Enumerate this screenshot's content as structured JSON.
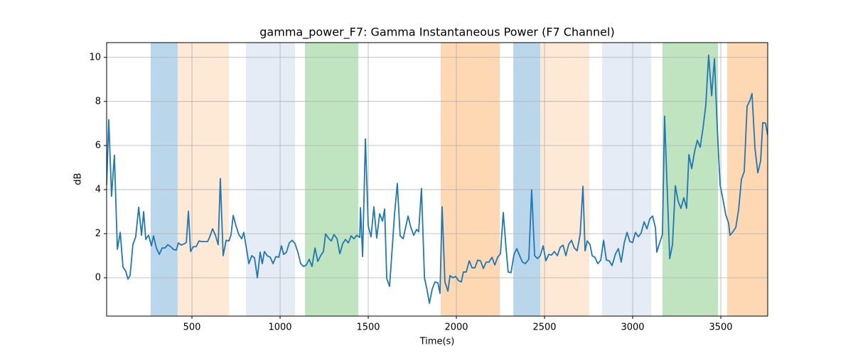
{
  "chart_data": {
    "type": "line",
    "title": "gamma_power_F7: Gamma Instantaneous Power (F7 Channel)",
    "xlabel": "Time(s)",
    "ylabel": "dB",
    "color": "#1f77b4",
    "x": [
      16,
      28,
      44,
      60,
      77,
      93,
      109,
      125,
      137,
      149,
      165,
      181,
      198,
      214,
      226,
      238,
      254,
      270,
      282,
      298,
      315,
      331,
      347,
      363,
      379,
      395,
      411,
      423,
      440,
      456,
      468,
      480,
      492,
      508,
      524,
      540,
      556,
      573,
      589,
      601,
      617,
      633,
      649,
      661,
      677,
      694,
      710,
      722,
      734,
      750,
      766,
      782,
      794,
      806,
      823,
      839,
      855,
      871,
      887,
      899,
      911,
      927,
      944,
      960,
      976,
      992,
      1008,
      1020,
      1036,
      1052,
      1069,
      1085,
      1101,
      1117,
      1133,
      1149,
      1165,
      1181,
      1198,
      1214,
      1230,
      1246,
      1258,
      1274,
      1290,
      1306,
      1323,
      1339,
      1355,
      1371,
      1387,
      1403,
      1419,
      1435,
      1452,
      1456,
      1468,
      1484,
      1500,
      1516,
      1532,
      1548,
      1565,
      1581,
      1593,
      1605,
      1621,
      1637,
      1649,
      1665,
      1681,
      1698,
      1714,
      1726,
      1742,
      1758,
      1774,
      1786,
      1802,
      1819,
      1835,
      1847,
      1863,
      1879,
      1895,
      1907,
      1919,
      1935,
      1952,
      1964,
      1980,
      1996,
      2012,
      2028,
      2040,
      2056,
      2073,
      2089,
      2105,
      2121,
      2137,
      2153,
      2169,
      2185,
      2202,
      2218,
      2234,
      2250,
      2266,
      2282,
      2294,
      2310,
      2327,
      2343,
      2359,
      2375,
      2391,
      2411,
      2427,
      2444,
      2460,
      2476,
      2492,
      2508,
      2524,
      2540,
      2556,
      2573,
      2589,
      2605,
      2621,
      2637,
      2653,
      2669,
      2685,
      2702,
      2718,
      2730,
      2742,
      2758,
      2770,
      2786,
      2802,
      2819,
      2835,
      2851,
      2867,
      2883,
      2903,
      2919,
      2935,
      2952,
      2968,
      2984,
      3000,
      3016,
      3032,
      3048,
      3065,
      3081,
      3097,
      3113,
      3129,
      3137,
      3153,
      3169,
      3181,
      3198,
      3210,
      3226,
      3242,
      3258,
      3274,
      3290,
      3306,
      3319,
      3335,
      3351,
      3367,
      3383,
      3399,
      3415,
      3431,
      3448,
      3464,
      3480,
      3496,
      3512,
      3528,
      3544,
      3552,
      3569,
      3585,
      3601,
      3617,
      3633,
      3649,
      3665,
      3677,
      3694,
      3710,
      3726,
      3738,
      3754,
      3766
    ],
    "values": [
      4.2,
      7.17,
      3.7,
      5.56,
      1.29,
      2.06,
      0.48,
      0.29,
      -0.06,
      0.1,
      1.5,
      1.86,
      3.2,
      1.93,
      3.0,
      1.74,
      1.93,
      1.45,
      1.9,
      1.35,
      1.06,
      1.35,
      1.35,
      1.5,
      1.41,
      1.29,
      1.25,
      1.58,
      1.48,
      1.54,
      1.6,
      3.02,
      1.19,
      1.41,
      1.41,
      1.67,
      1.64,
      1.64,
      1.64,
      1.86,
      2.22,
      1.93,
      1.5,
      4.5,
      1.0,
      1.7,
      1.67,
      1.96,
      2.83,
      2.35,
      1.96,
      1.77,
      2.06,
      1.48,
      0.64,
      1.0,
      0.9,
      0,
      1.16,
      0.64,
      1.19,
      1.0,
      0.93,
      0.64,
      0.96,
      0.93,
      1.45,
      1.06,
      1.16,
      1.58,
      1.7,
      1.54,
      1.16,
      0.64,
      0.51,
      0.58,
      0.84,
      0.51,
      1.35,
      0.74,
      1.0,
      1.19,
      1.99,
      1.8,
      1.67,
      1.96,
      1.77,
      1.09,
      1.54,
      1.74,
      1.58,
      1.9,
      1.77,
      1.93,
      1.83,
      3.18,
      0.96,
      6.3,
      2.35,
      1.86,
      3.22,
      1.8,
      2.9,
      2.57,
      3.12,
      -0.03,
      -0.39,
      1.45,
      2.86,
      4.28,
      1.9,
      1.77,
      2.35,
      2.8,
      2.28,
      1.93,
      2.19,
      2.09,
      4.05,
      0,
      -0.61,
      -1.16,
      -0.51,
      -0.19,
      -0.23,
      -0.71,
      3.22,
      -0.19,
      -0.61,
      0.1,
      0,
      0.06,
      -0.13,
      -0.19,
      0.26,
      0.26,
      0.77,
      0.45,
      0.45,
      0.8,
      0.77,
      0.42,
      0.71,
      0.71,
      0.93,
      0.58,
      0.93,
      1.09,
      2.96,
      1.32,
      0.26,
      0.23,
      1.06,
      1.32,
      1.0,
      0.71,
      0.64,
      0.84,
      3.99,
      1.0,
      0.87,
      1.0,
      1.45,
      0.77,
      1.06,
      1.03,
      1.19,
      1.0,
      1.38,
      1.48,
      1.0,
      1.51,
      1.7,
      1.35,
      1.22,
      1.96,
      4.15,
      1.22,
      1.67,
      1.51,
      1.0,
      0.93,
      0.64,
      0.8,
      1.7,
      0.8,
      0.77,
      0.55,
      1.09,
      1.32,
      0.71,
      1.58,
      2.06,
      1.64,
      1.6,
      2.06,
      1.86,
      2.03,
      2.54,
      2.22,
      2.67,
      2.8,
      2.28,
      1.16,
      1.58,
      1.96,
      7.33,
      3.57,
      0.87,
      1.51,
      4.18,
      3.47,
      3.15,
      3.63,
      3.15,
      5.59,
      4.95,
      5.72,
      6.24,
      5.92,
      6.78,
      7.85,
      10.1,
      8.26,
      9.94,
      6.78,
      4.21,
      3.57,
      2.86,
      2.48,
      1.93,
      2.09,
      2.28,
      3.09,
      4.47,
      4.82,
      7.78,
      8.04,
      8.36,
      5.85,
      4.76,
      5.31,
      7.04,
      7.01,
      6.46
    ],
    "spans": [
      {
        "start": 266,
        "end": 419,
        "color": "#bad6ea"
      },
      {
        "start": 419,
        "end": 710,
        "color": "#fde9d6"
      },
      {
        "start": 806,
        "end": 1085,
        "color": "#e5ecf6"
      },
      {
        "start": 1141,
        "end": 1444,
        "color": "#c0e3c0"
      },
      {
        "start": 1911,
        "end": 2246,
        "color": "#fdd8b3"
      },
      {
        "start": 2323,
        "end": 2476,
        "color": "#bad6ea"
      },
      {
        "start": 2476,
        "end": 2754,
        "color": "#fde9d6"
      },
      {
        "start": 2827,
        "end": 3105,
        "color": "#e5ecf6"
      },
      {
        "start": 3169,
        "end": 3484,
        "color": "#c0e3c0"
      },
      {
        "start": 3536,
        "end": 3766,
        "color": "#fdd8b3"
      }
    ],
    "xlim": [
      16,
      3766
    ],
    "ylim": [
      -1.74,
      10.67
    ],
    "xticks": [
      500,
      1000,
      1500,
      2000,
      2500,
      3000,
      3500
    ],
    "yticks": [
      0,
      2,
      4,
      6,
      8,
      10
    ],
    "grid": true
  }
}
